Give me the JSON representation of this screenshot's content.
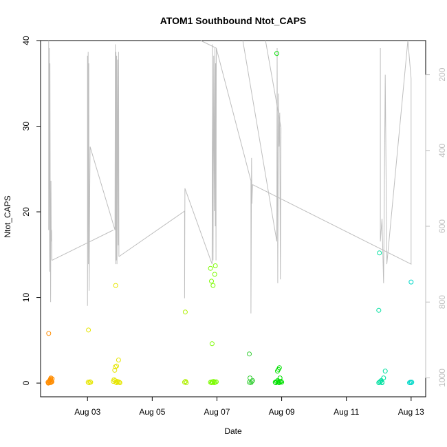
{
  "chart_data": {
    "type": "scatter",
    "title": "ATOM1 Southbound Ntot_CAPS",
    "xlabel": "Date",
    "ylabel": "Ntot_CAPS",
    "x_unit": "days (August day-of-month)",
    "xlim": [
      1.55,
      13.45
    ],
    "ylim": [
      -1.6,
      40
    ],
    "x_ticks": [
      {
        "value": 3,
        "label": "Aug 03"
      },
      {
        "value": 5,
        "label": "Aug 05"
      },
      {
        "value": 7,
        "label": "Aug 07"
      },
      {
        "value": 9,
        "label": "Aug 09"
      },
      {
        "value": 11,
        "label": "Aug 11"
      },
      {
        "value": 13,
        "label": "Aug 13"
      }
    ],
    "y_ticks": [
      0,
      10,
      20,
      30,
      40
    ],
    "right_axis": {
      "ticks": [
        200,
        400,
        600,
        800,
        1000
      ],
      "range": [
        1050,
        110
      ],
      "color": "#bebebe",
      "series": "grey line",
      "segments": [
        [
          [
            1.8,
            110
          ],
          [
            1.8,
            610
          ],
          [
            1.82,
            130
          ],
          [
            1.83,
            720
          ],
          [
            1.84,
            170
          ],
          [
            1.85,
            600
          ],
          [
            1.86,
            800
          ],
          [
            1.87,
            480
          ],
          [
            1.88,
            640
          ],
          [
            1.89,
            610
          ],
          [
            1.9,
            690
          ]
        ],
        [
          [
            1.9,
            690
          ],
          [
            3.8,
            610
          ]
        ],
        [
          [
            3.0,
            150
          ],
          [
            3.0,
            810
          ],
          [
            3.02,
            140
          ],
          [
            3.03,
            700
          ],
          [
            3.04,
            170
          ],
          [
            3.05,
            770
          ],
          [
            3.07,
            500
          ],
          [
            3.08,
            390
          ],
          [
            3.85,
            610
          ],
          [
            3.86,
            120
          ],
          [
            3.87,
            700
          ],
          [
            3.88,
            140
          ],
          [
            3.89,
            690
          ],
          [
            3.9,
            150
          ],
          [
            3.91,
            700
          ],
          [
            3.93,
            160
          ],
          [
            3.95,
            650
          ],
          [
            3.96,
            140
          ],
          [
            3.97,
            680
          ]
        ],
        [
          [
            3.97,
            680
          ],
          [
            6.0,
            560
          ],
          [
            6.0,
            790
          ],
          [
            6.01,
            500
          ]
        ],
        [
          [
            6.01,
            500
          ],
          [
            6.85,
            700
          ],
          [
            6.86,
            120
          ],
          [
            6.88,
            690
          ],
          [
            6.9,
            150
          ],
          [
            6.92,
            560
          ],
          [
            6.94,
            130
          ],
          [
            6.95,
            600
          ],
          [
            6.96,
            170
          ],
          [
            6.97,
            690
          ],
          [
            6.98,
            130
          ]
        ],
        [
          [
            6.98,
            130
          ],
          [
            6.5,
            110
          ]
        ],
        [
          [
            6.98,
            130
          ],
          [
            8.05,
            480
          ],
          [
            8.05,
            830
          ],
          [
            8.07,
            420
          ],
          [
            8.08,
            540
          ],
          [
            8.1,
            490
          ]
        ],
        [
          [
            7.8,
            110
          ],
          [
            8.85,
            640
          ],
          [
            8.86,
            130
          ],
          [
            8.88,
            750
          ],
          [
            8.9,
            250
          ],
          [
            8.92,
            390
          ],
          [
            8.94,
            300
          ],
          [
            8.96,
            740
          ],
          [
            8.98,
            340
          ]
        ],
        [
          [
            8.98,
            340
          ],
          [
            8.5,
            110
          ]
        ],
        [
          [
            8.1,
            490
          ],
          [
            13.0,
            700
          ],
          [
            13.0,
            210
          ],
          [
            12.9,
            110
          ]
        ],
        [
          [
            12.05,
            130
          ],
          [
            12.05,
            640
          ],
          [
            12.1,
            580
          ],
          [
            12.15,
            750
          ],
          [
            12.2,
            200
          ],
          [
            12.25,
            700
          ],
          [
            12.9,
            110
          ]
        ]
      ]
    },
    "series": [
      {
        "color": "#ff8c00",
        "x": [
          1.78,
          1.8,
          1.82,
          1.83,
          1.84,
          1.85,
          1.86,
          1.87,
          1.88,
          1.89,
          1.9,
          1.91,
          1.79,
          1.81,
          1.86,
          1.8
        ],
        "y": [
          0.1,
          0.05,
          0.2,
          0.3,
          0.25,
          0.4,
          0.5,
          0.6,
          0.3,
          0.2,
          0.15,
          0.5,
          0.0,
          0.1,
          0.05,
          5.8
        ]
      },
      {
        "color": "#e6e600",
        "x": [
          3.02,
          3.05,
          3.08,
          3.1,
          3.03,
          3.8,
          3.82,
          3.85,
          3.88,
          3.9,
          3.92,
          3.95,
          3.98,
          4.0,
          3.86,
          3.9,
          3.96,
          3.84,
          3.87
        ],
        "y": [
          0.1,
          0.05,
          0.15,
          0.1,
          6.2,
          0.2,
          0.4,
          0.3,
          0.1,
          0.05,
          0.2,
          0.15,
          0.1,
          0.05,
          1.9,
          2.0,
          2.7,
          1.5,
          11.4
        ]
      },
      {
        "color": "#b0f000",
        "x": [
          6.0,
          6.03,
          6.05,
          6.02
        ],
        "y": [
          0.1,
          0.2,
          0.05,
          8.3
        ]
      },
      {
        "color": "#7cfc00",
        "x": [
          6.8,
          6.83,
          6.85,
          6.87,
          6.9,
          6.92,
          6.95,
          6.98,
          6.8,
          6.83,
          6.88,
          6.93,
          6.95,
          6.85
        ],
        "y": [
          0.1,
          0.05,
          0.15,
          0.1,
          0.2,
          0.05,
          0.1,
          0.15,
          13.4,
          11.9,
          11.4,
          12.7,
          13.7,
          4.6
        ]
      },
      {
        "color": "#32cd32",
        "x": [
          8.0,
          8.05,
          8.08,
          8.1,
          8.0,
          8.02
        ],
        "y": [
          0.1,
          0.05,
          0.2,
          0.3,
          3.4,
          0.6
        ]
      },
      {
        "color": "#00e000",
        "x": [
          8.8,
          8.82,
          8.85,
          8.88,
          8.9,
          8.92,
          8.95,
          8.98,
          9.0,
          8.87,
          8.9,
          8.93,
          8.95,
          8.85
        ],
        "y": [
          0.1,
          0.05,
          0.2,
          0.3,
          0.1,
          0.05,
          0.15,
          0.2,
          0.1,
          1.4,
          1.6,
          1.8,
          0.6,
          38.5
        ]
      },
      {
        "color": "#00e0a0",
        "x": [
          12.0,
          12.03,
          12.05,
          12.08,
          12.1,
          12.15,
          12.2,
          12.1,
          12.0,
          12.02
        ],
        "y": [
          0.05,
          0.1,
          0.2,
          0.3,
          0.05,
          0.6,
          1.4,
          0.1,
          8.5,
          15.2
        ]
      },
      {
        "color": "#00d8c8",
        "x": [
          12.95,
          12.98,
          13.0,
          13.02,
          13.0
        ],
        "y": [
          0.05,
          0.1,
          0.05,
          0.1,
          11.8
        ]
      }
    ]
  }
}
